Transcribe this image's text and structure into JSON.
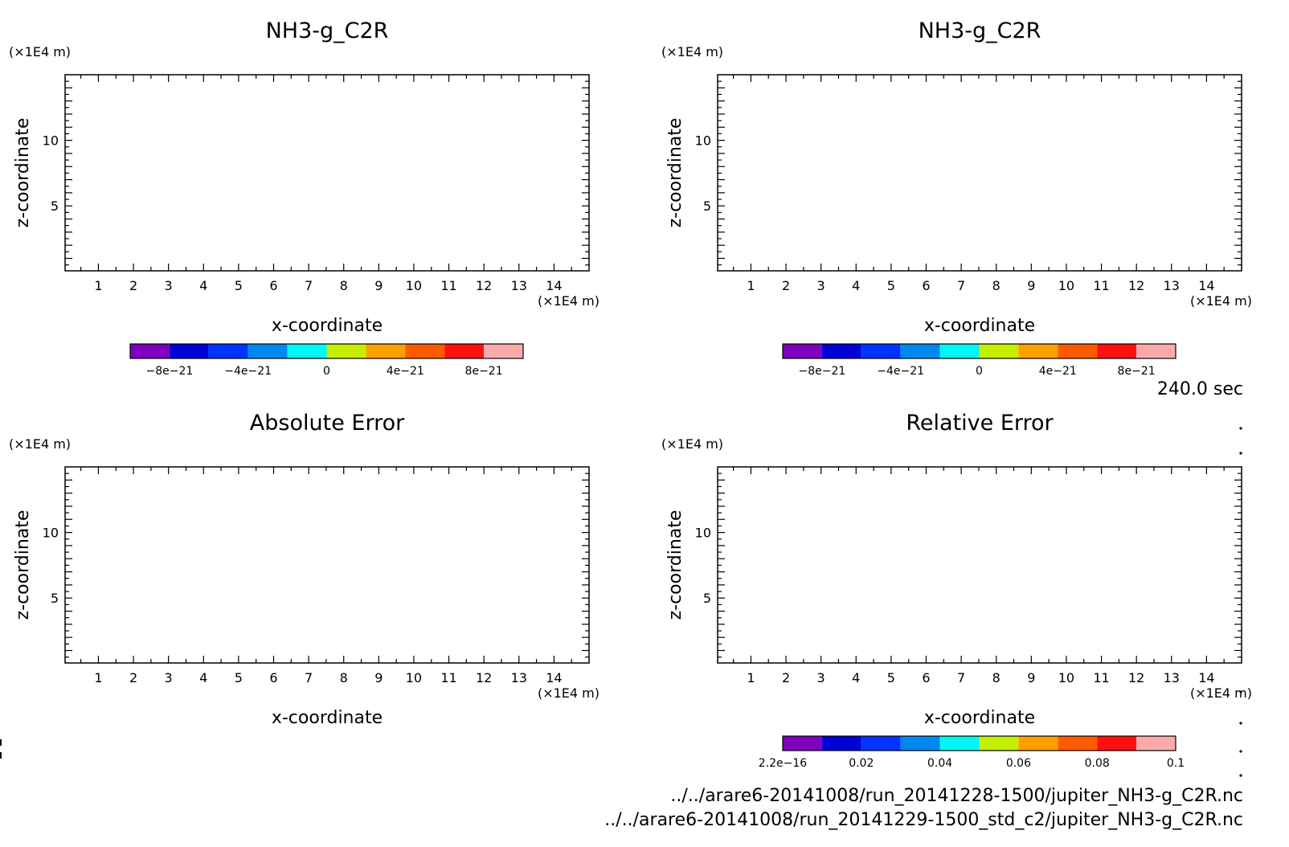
{
  "chart_data": [
    {
      "type": "heatmap",
      "title": "NH3-g_C2R",
      "xlabel": "x-coordinate",
      "ylabel": "z-coordinate",
      "x_unit": "(×1E4 m)",
      "y_unit": "(×1E4 m)",
      "xlim": [
        0.05,
        15.0
      ],
      "ylim": [
        0.05,
        15.0
      ],
      "x_ticks": [
        "1",
        "2",
        "3",
        "4",
        "5",
        "6",
        "7",
        "8",
        "9",
        "10",
        "11",
        "12",
        "13",
        "14"
      ],
      "y_ticks": [
        "5",
        "10"
      ],
      "colorbar": {
        "colors": [
          "#7f00bf",
          "#0000d8",
          "#0033ff",
          "#0088f0",
          "#00f7f7",
          "#c4ee00",
          "#ffa000",
          "#ff5a00",
          "#ff1010",
          "#ffaaaa"
        ],
        "labels": [
          "−8e−21",
          "−4e−21",
          "0",
          "4e−21",
          "8e−21"
        ],
        "label_positions": [
          1,
          3,
          5,
          7,
          9
        ]
      }
    },
    {
      "type": "heatmap",
      "title": "NH3-g_C2R",
      "xlabel": "x-coordinate",
      "ylabel": "z-coordinate",
      "x_unit": "(×1E4 m)",
      "y_unit": "(×1E4 m)",
      "xlim": [
        0.05,
        15.0
      ],
      "ylim": [
        0.05,
        15.0
      ],
      "x_ticks": [
        "1",
        "2",
        "3",
        "4",
        "5",
        "6",
        "7",
        "8",
        "9",
        "10",
        "11",
        "12",
        "13",
        "14"
      ],
      "y_ticks": [
        "5",
        "10"
      ],
      "colorbar": {
        "colors": [
          "#7f00bf",
          "#0000d8",
          "#0033ff",
          "#0088f0",
          "#00f7f7",
          "#c4ee00",
          "#ffa000",
          "#ff5a00",
          "#ff1010",
          "#ffaaaa"
        ],
        "labels": [
          "−8e−21",
          "−4e−21",
          "0",
          "4e−21",
          "8e−21"
        ],
        "label_positions": [
          1,
          3,
          5,
          7,
          9
        ]
      }
    },
    {
      "type": "heatmap",
      "title": "Absolute Error",
      "xlabel": "x-coordinate",
      "ylabel": "z-coordinate",
      "x_unit": "(×1E4 m)",
      "y_unit": "(×1E4 m)",
      "xlim": [
        0.05,
        15.0
      ],
      "ylim": [
        0.05,
        15.0
      ],
      "x_ticks": [
        "1",
        "2",
        "3",
        "4",
        "5",
        "6",
        "7",
        "8",
        "9",
        "10",
        "11",
        "12",
        "13",
        "14"
      ],
      "y_ticks": [
        "5",
        "10"
      ],
      "colorbar": null
    },
    {
      "type": "heatmap",
      "title": "Relative Error",
      "xlabel": "x-coordinate",
      "ylabel": "z-coordinate",
      "x_unit": "(×1E4 m)",
      "y_unit": "(×1E4 m)",
      "xlim": [
        0.05,
        15.0
      ],
      "ylim": [
        0.05,
        15.0
      ],
      "x_ticks": [
        "1",
        "2",
        "3",
        "4",
        "5",
        "6",
        "7",
        "8",
        "9",
        "10",
        "11",
        "12",
        "13",
        "14"
      ],
      "y_ticks": [
        "5",
        "10"
      ],
      "colorbar": {
        "colors": [
          "#7f00bf",
          "#0000d8",
          "#0033ff",
          "#0088f0",
          "#00f7f7",
          "#c4ee00",
          "#ffa000",
          "#ff5a00",
          "#ff1010",
          "#ffaaaa"
        ],
        "labels": [
          "2.2e−16",
          "0.02",
          "0.04",
          "0.06",
          "0.08",
          "0.1"
        ],
        "label_positions": [
          0,
          2,
          4,
          6,
          8,
          10
        ]
      }
    }
  ],
  "time_label": "240.0 sec",
  "footer_lines": [
    "../../arare6-20141008/run_20141228-1500/jupiter_NH3-g_C2R.nc",
    "../../arare6-20141008/run_20141229-1500_std_c2/jupiter_NH3-g_C2R.nc"
  ]
}
